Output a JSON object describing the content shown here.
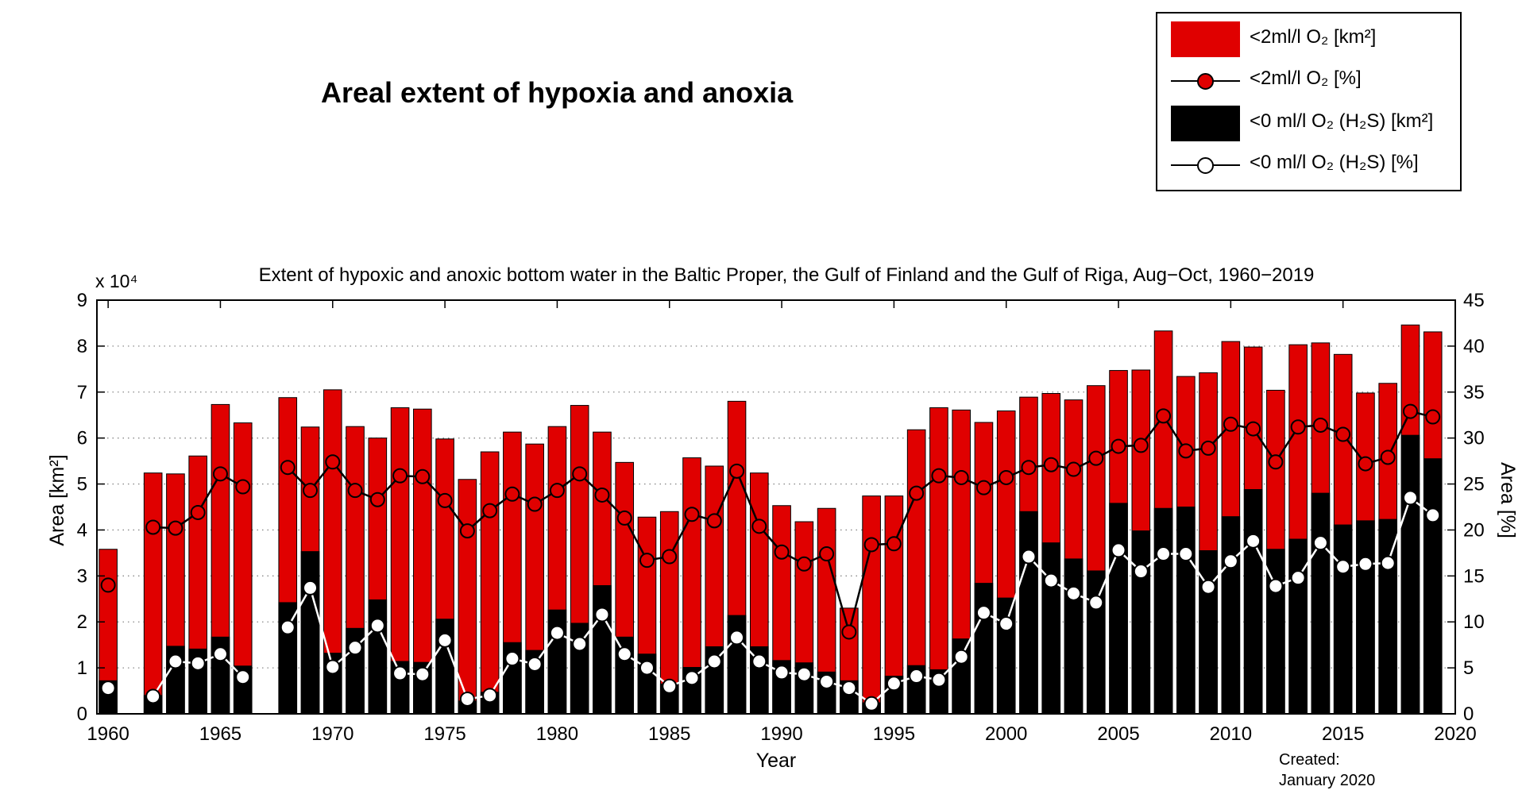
{
  "main_title": "Areal extent of hypoxia and anoxia",
  "legend": {
    "items": [
      {
        "label": "<2ml/l O₂ [km²]",
        "kind": "bar",
        "color": "#e00000"
      },
      {
        "label": "<2ml/l O₂ [%]",
        "kind": "line",
        "marker_fill": "#e00000"
      },
      {
        "label": "<0 ml/l O₂ (H₂S) [km²]",
        "kind": "bar",
        "color": "#000000"
      },
      {
        "label": "<0 ml/l O₂ (H₂S) [%]",
        "kind": "line",
        "marker_fill": "#ffffff"
      }
    ]
  },
  "created": {
    "line1": "Created:",
    "line2": "January 2020"
  },
  "chart_data": {
    "type": "bar",
    "title": "Extent of hypoxic and anoxic bottom water in the Baltic Proper, the Gulf of Finland and the Gulf of Riga, Aug−Oct, 1960−2019",
    "xlabel": "Year",
    "ylabel": "Area [km²]",
    "ylabel_right": "Area [%]",
    "y_multiplier": "x 10⁴",
    "xlim": [
      1959.5,
      2020
    ],
    "ylim": [
      0,
      90000
    ],
    "ylim_right": [
      0,
      45
    ],
    "x_ticks": [
      1960,
      1965,
      1970,
      1975,
      1980,
      1985,
      1990,
      1995,
      2000,
      2005,
      2010,
      2015,
      2020
    ],
    "y_ticks_left": [
      0,
      1,
      2,
      3,
      4,
      5,
      6,
      7,
      8,
      9
    ],
    "y_ticks_right": [
      0,
      5,
      10,
      15,
      20,
      25,
      30,
      35,
      40,
      45
    ],
    "grid": "dotted-horizontal",
    "colors": {
      "hypoxia": "#e00000",
      "anoxia": "#000000",
      "hypoxia_line": "#000000",
      "anoxia_line": "#ffffff"
    },
    "years": [
      1960,
      1962,
      1963,
      1964,
      1965,
      1966,
      1968,
      1969,
      1970,
      1971,
      1972,
      1973,
      1974,
      1975,
      1976,
      1977,
      1978,
      1979,
      1980,
      1981,
      1982,
      1983,
      1984,
      1985,
      1986,
      1987,
      1988,
      1989,
      1990,
      1991,
      1992,
      1993,
      1994,
      1995,
      1996,
      1997,
      1998,
      1999,
      2000,
      2001,
      2002,
      2003,
      2004,
      2005,
      2006,
      2007,
      2008,
      2009,
      2010,
      2011,
      2012,
      2013,
      2014,
      2015,
      2016,
      2017,
      2018,
      2019
    ],
    "series": [
      {
        "name": "<2ml/l O2 [km2]",
        "axis": "left",
        "values": [
          35800,
          52400,
          52200,
          56100,
          67300,
          63300,
          68800,
          62400,
          70500,
          62500,
          60000,
          66600,
          66300,
          59800,
          51000,
          57000,
          61300,
          58700,
          62500,
          67100,
          61300,
          54700,
          42800,
          44000,
          55700,
          53900,
          68000,
          52400,
          45300,
          41800,
          44700,
          23000,
          47400,
          47400,
          61800,
          66600,
          66100,
          63400,
          65900,
          68900,
          69700,
          68300,
          71400,
          74700,
          74800,
          83300,
          73400,
          74200,
          81000,
          79800,
          70400,
          80300,
          80700,
          78200,
          69800,
          71900,
          84600,
          83100
        ]
      },
      {
        "name": "<0 ml/l O2 (H2S) [km2]",
        "axis": "left",
        "values": [
          7200,
          4000,
          14700,
          14100,
          16700,
          10400,
          24200,
          35300,
          13200,
          18600,
          24800,
          11400,
          11200,
          20600,
          2800,
          4700,
          15500,
          13800,
          22600,
          19700,
          27900,
          16700,
          13000,
          6500,
          10100,
          14600,
          21400,
          14600,
          11600,
          11100,
          9100,
          7200,
          2400,
          8200,
          10500,
          9600,
          16300,
          28400,
          25200,
          44000,
          37200,
          33700,
          31100,
          45800,
          39800,
          44700,
          45000,
          35500,
          42900,
          48800,
          35800,
          38000,
          48000,
          41100,
          42000,
          42300,
          60600,
          55500
        ]
      },
      {
        "name": "<2ml/l O2 [%]",
        "axis": "right",
        "values": [
          14.0,
          20.3,
          20.2,
          21.9,
          26.1,
          24.7,
          26.8,
          24.3,
          27.4,
          24.3,
          23.3,
          25.9,
          25.8,
          23.2,
          19.9,
          22.1,
          23.9,
          22.8,
          24.3,
          26.1,
          23.8,
          21.3,
          16.7,
          17.1,
          21.7,
          21.0,
          26.4,
          20.4,
          17.6,
          16.3,
          17.4,
          8.9,
          18.4,
          18.5,
          24.0,
          25.9,
          25.7,
          24.6,
          25.7,
          26.8,
          27.1,
          26.6,
          27.8,
          29.1,
          29.2,
          32.4,
          28.6,
          28.9,
          31.5,
          31.0,
          27.4,
          31.2,
          31.4,
          30.4,
          27.2,
          27.9,
          32.9,
          32.3
        ]
      },
      {
        "name": "<0 ml/l O2 (H2S) [%]",
        "axis": "right",
        "values": [
          2.8,
          1.9,
          5.7,
          5.5,
          6.5,
          4.0,
          9.4,
          13.7,
          5.1,
          7.2,
          9.6,
          4.4,
          4.3,
          8.0,
          1.6,
          2.0,
          6.0,
          5.4,
          8.8,
          7.6,
          10.8,
          6.5,
          5.0,
          3.0,
          3.9,
          5.7,
          8.3,
          5.7,
          4.5,
          4.3,
          3.5,
          2.8,
          1.1,
          3.3,
          4.1,
          3.7,
          6.2,
          11.0,
          9.8,
          17.1,
          14.5,
          13.1,
          12.1,
          17.8,
          15.5,
          17.4,
          17.4,
          13.8,
          16.6,
          18.8,
          13.9,
          14.8,
          18.6,
          16.0,
          16.3,
          16.4,
          23.5,
          21.6
        ]
      }
    ]
  }
}
